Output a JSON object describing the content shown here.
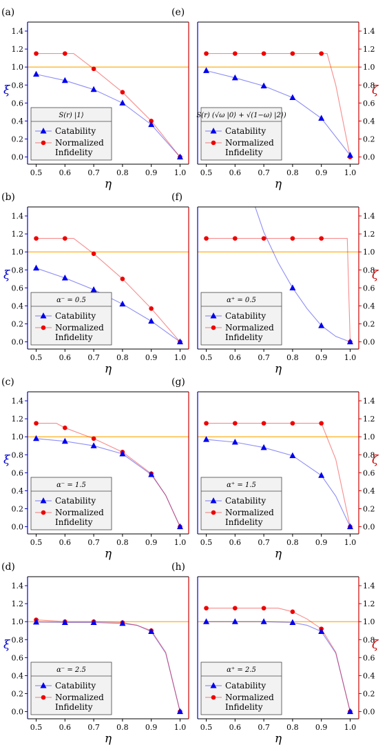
{
  "colors": {
    "catability": "#0000ee",
    "infidelity": "#ee0000",
    "reference_line": "#ffa500",
    "left_axis": "#0000cc",
    "right_axis": "#cc0000"
  },
  "legend_labels": [
    "Catability",
    "Normalized",
    "Infidelity"
  ],
  "chart_data": [
    {
      "type": "line",
      "panel": "(a)",
      "legend_title": "S(r) |1⟩",
      "xlabel": "η",
      "ylabel": "ξ",
      "ylabel_right": "",
      "x": [
        0.5,
        0.6,
        0.7,
        0.8,
        0.9,
        1.0
      ],
      "xlim": [
        0.47,
        1.03
      ],
      "ylim": [
        -0.08,
        1.5
      ],
      "x_ticks": [
        "0.5",
        "0.6",
        "0.7",
        "0.8",
        "0.9",
        "1.0"
      ],
      "y_ticks": [
        "0.0",
        "0.2",
        "0.4",
        "0.6",
        "0.8",
        "1.0",
        "1.2",
        "1.4"
      ],
      "reference_line": 1.0,
      "series": [
        {
          "name": "Catability",
          "values": [
            0.92,
            0.85,
            0.75,
            0.6,
            0.36,
            0.0
          ],
          "curve_x": [
            0.5,
            0.6,
            0.7,
            0.8,
            0.9,
            1.0
          ],
          "curve_y": [
            0.92,
            0.85,
            0.75,
            0.6,
            0.36,
            0.0
          ]
        },
        {
          "name": "Normalized Infidelity",
          "values": [
            1.15,
            1.15,
            0.98,
            0.72,
            0.4,
            0.0
          ],
          "curve_x": [
            0.5,
            0.6,
            0.63,
            0.7,
            0.8,
            0.9,
            1.0
          ],
          "curve_y": [
            1.15,
            1.15,
            1.15,
            0.98,
            0.72,
            0.4,
            0.0
          ]
        }
      ]
    },
    {
      "type": "line",
      "panel": "(b)",
      "legend_title": "α⁻ = 0.5",
      "xlabel": "η",
      "ylabel": "ξ",
      "ylabel_right": "",
      "x": [
        0.5,
        0.6,
        0.7,
        0.8,
        0.9,
        1.0
      ],
      "xlim": [
        0.47,
        1.03
      ],
      "ylim": [
        -0.08,
        1.5
      ],
      "x_ticks": [
        "0.5",
        "0.6",
        "0.7",
        "0.8",
        "0.9",
        "1.0"
      ],
      "y_ticks": [
        "0.0",
        "0.2",
        "0.4",
        "0.6",
        "0.8",
        "1.0",
        "1.2",
        "1.4"
      ],
      "reference_line": 1.0,
      "series": [
        {
          "name": "Catability",
          "values": [
            0.82,
            0.71,
            0.58,
            0.42,
            0.23,
            0.0
          ],
          "curve_x": [
            0.5,
            0.6,
            0.7,
            0.8,
            0.9,
            1.0
          ],
          "curve_y": [
            0.82,
            0.71,
            0.58,
            0.42,
            0.23,
            0.0
          ]
        },
        {
          "name": "Normalized Infidelity",
          "values": [
            1.15,
            1.15,
            0.98,
            0.7,
            0.37,
            0.0
          ],
          "curve_x": [
            0.5,
            0.6,
            0.63,
            0.7,
            0.8,
            0.9,
            1.0
          ],
          "curve_y": [
            1.15,
            1.15,
            1.15,
            0.98,
            0.7,
            0.37,
            0.0
          ]
        }
      ]
    },
    {
      "type": "line",
      "panel": "(c)",
      "legend_title": "α⁻ = 1.5",
      "xlabel": "η",
      "ylabel": "ξ",
      "ylabel_right": "",
      "x": [
        0.5,
        0.6,
        0.7,
        0.8,
        0.9,
        1.0
      ],
      "xlim": [
        0.47,
        1.03
      ],
      "ylim": [
        -0.08,
        1.5
      ],
      "x_ticks": [
        "0.5",
        "0.6",
        "0.7",
        "0.8",
        "0.9",
        "1.0"
      ],
      "y_ticks": [
        "0.0",
        "0.2",
        "0.4",
        "0.6",
        "0.8",
        "1.0",
        "1.2",
        "1.4"
      ],
      "reference_line": 1.0,
      "series": [
        {
          "name": "Catability",
          "values": [
            0.98,
            0.95,
            0.9,
            0.81,
            0.58,
            0.0
          ],
          "curve_x": [
            0.5,
            0.6,
            0.7,
            0.8,
            0.9,
            0.95,
            1.0
          ],
          "curve_y": [
            0.98,
            0.95,
            0.9,
            0.81,
            0.58,
            0.35,
            0.0
          ]
        },
        {
          "name": "Normalized Infidelity",
          "values": [
            1.15,
            1.1,
            0.98,
            0.83,
            0.59,
            0.0
          ],
          "curve_x": [
            0.5,
            0.57,
            0.6,
            0.7,
            0.8,
            0.9,
            0.95,
            1.0
          ],
          "curve_y": [
            1.15,
            1.15,
            1.1,
            0.98,
            0.83,
            0.59,
            0.35,
            0.0
          ]
        }
      ]
    },
    {
      "type": "line",
      "panel": "(d)",
      "legend_title": "α⁻ = 2.5",
      "xlabel": "η",
      "ylabel": "ξ",
      "ylabel_right": "",
      "x": [
        0.5,
        0.6,
        0.7,
        0.8,
        0.9,
        1.0
      ],
      "xlim": [
        0.47,
        1.03
      ],
      "ylim": [
        -0.08,
        1.5
      ],
      "x_ticks": [
        "0.5",
        "0.6",
        "0.7",
        "0.8",
        "0.9",
        "1.0"
      ],
      "y_ticks": [
        "0.0",
        "0.2",
        "0.4",
        "0.6",
        "0.8",
        "1.0",
        "1.2",
        "1.4"
      ],
      "reference_line": 1.0,
      "series": [
        {
          "name": "Catability",
          "values": [
            0.995,
            0.99,
            0.99,
            0.98,
            0.89,
            0.0
          ],
          "curve_x": [
            0.5,
            0.6,
            0.7,
            0.8,
            0.85,
            0.9,
            0.95,
            1.0
          ],
          "curve_y": [
            0.995,
            0.99,
            0.99,
            0.98,
            0.96,
            0.89,
            0.65,
            0.0
          ]
        },
        {
          "name": "Normalized Infidelity",
          "values": [
            1.02,
            1.0,
            1.0,
            0.99,
            0.9,
            0.0
          ],
          "curve_x": [
            0.5,
            0.6,
            0.7,
            0.8,
            0.85,
            0.9,
            0.95,
            1.0
          ],
          "curve_y": [
            1.02,
            1.0,
            1.0,
            0.99,
            0.96,
            0.9,
            0.66,
            0.0
          ]
        }
      ]
    },
    {
      "type": "line",
      "panel": "(e)",
      "legend_title": "S(r) (√ω |0⟩ + √(1−ω) |2⟩)",
      "xlabel": "η",
      "ylabel": "",
      "ylabel_right": "ζ",
      "x": [
        0.5,
        0.6,
        0.7,
        0.8,
        0.9,
        1.0
      ],
      "xlim": [
        0.47,
        1.03
      ],
      "ylim": [
        -0.08,
        1.5
      ],
      "x_ticks": [
        "0.5",
        "0.6",
        "0.7",
        "0.8",
        "0.9",
        "1.0"
      ],
      "y_ticks": [
        "0.0",
        "0.2",
        "0.4",
        "0.6",
        "0.8",
        "1.0",
        "1.2",
        "1.4"
      ],
      "reference_line": 1.0,
      "series": [
        {
          "name": "Catability",
          "values": [
            0.96,
            0.88,
            0.79,
            0.66,
            0.43,
            0.02
          ],
          "curve_x": [
            0.5,
            0.6,
            0.7,
            0.8,
            0.9,
            1.0
          ],
          "curve_y": [
            0.96,
            0.88,
            0.79,
            0.66,
            0.43,
            0.02
          ]
        },
        {
          "name": "Normalized Infidelity",
          "values": [
            1.15,
            1.15,
            1.15,
            1.15,
            1.15,
            0.0
          ],
          "curve_x": [
            0.5,
            0.6,
            0.7,
            0.8,
            0.9,
            0.92,
            0.95,
            1.0
          ],
          "curve_y": [
            1.15,
            1.15,
            1.15,
            1.15,
            1.15,
            1.15,
            0.8,
            0.0
          ]
        }
      ]
    },
    {
      "type": "line",
      "panel": "(f)",
      "legend_title": "α⁺ = 0.5",
      "xlabel": "η",
      "ylabel": "",
      "ylabel_right": "ζ",
      "x": [
        0.5,
        0.6,
        0.7,
        0.8,
        0.9,
        1.0
      ],
      "xlim": [
        0.47,
        1.03
      ],
      "ylim": [
        -0.08,
        1.5
      ],
      "x_ticks": [
        "0.5",
        "0.6",
        "0.7",
        "0.8",
        "0.9",
        "1.0"
      ],
      "y_ticks": [
        "0.0",
        "0.2",
        "0.4",
        "0.6",
        "0.8",
        "1.0",
        "1.2",
        "1.4"
      ],
      "reference_line": 1.0,
      "series": [
        {
          "name": "Catability",
          "values": [
            null,
            null,
            null,
            0.6,
            0.18,
            0.0
          ],
          "curve_x": [
            0.67,
            0.7,
            0.75,
            0.8,
            0.85,
            0.9,
            0.95,
            1.0
          ],
          "curve_y": [
            1.5,
            1.22,
            0.88,
            0.6,
            0.37,
            0.18,
            0.06,
            0.0
          ]
        },
        {
          "name": "Normalized Infidelity",
          "values": [
            1.15,
            1.15,
            1.15,
            1.15,
            1.15,
            0.0
          ],
          "curve_x": [
            0.5,
            0.6,
            0.7,
            0.8,
            0.9,
            0.99,
            1.0
          ],
          "curve_y": [
            1.15,
            1.15,
            1.15,
            1.15,
            1.15,
            1.15,
            0.0
          ]
        }
      ]
    },
    {
      "type": "line",
      "panel": "(g)",
      "legend_title": "α⁺ = 1.5",
      "xlabel": "η",
      "ylabel": "",
      "ylabel_right": "ζ",
      "x": [
        0.5,
        0.6,
        0.7,
        0.8,
        0.9,
        1.0
      ],
      "xlim": [
        0.47,
        1.03
      ],
      "ylim": [
        -0.08,
        1.5
      ],
      "x_ticks": [
        "0.5",
        "0.6",
        "0.7",
        "0.8",
        "0.9",
        "1.0"
      ],
      "y_ticks": [
        "0.0",
        "0.2",
        "0.4",
        "0.6",
        "0.8",
        "1.0",
        "1.2",
        "1.4"
      ],
      "reference_line": 1.0,
      "series": [
        {
          "name": "Catability",
          "values": [
            0.97,
            0.94,
            0.88,
            0.79,
            0.57,
            0.0
          ],
          "curve_x": [
            0.5,
            0.6,
            0.7,
            0.8,
            0.9,
            0.95,
            1.0
          ],
          "curve_y": [
            0.97,
            0.94,
            0.88,
            0.79,
            0.57,
            0.34,
            0.0
          ]
        },
        {
          "name": "Normalized Infidelity",
          "values": [
            1.15,
            1.15,
            1.15,
            1.15,
            1.15,
            0.0
          ],
          "curve_x": [
            0.5,
            0.6,
            0.7,
            0.8,
            0.9,
            0.95,
            1.0
          ],
          "curve_y": [
            1.15,
            1.15,
            1.15,
            1.15,
            1.15,
            0.75,
            0.0
          ]
        }
      ]
    },
    {
      "type": "line",
      "panel": "(h)",
      "legend_title": "α⁺ = 2.5",
      "xlabel": "η",
      "ylabel": "",
      "ylabel_right": "ζ",
      "x": [
        0.5,
        0.6,
        0.7,
        0.8,
        0.9,
        1.0
      ],
      "xlim": [
        0.47,
        1.03
      ],
      "ylim": [
        -0.08,
        1.5
      ],
      "x_ticks": [
        "0.5",
        "0.6",
        "0.7",
        "0.8",
        "0.9",
        "1.0"
      ],
      "y_ticks": [
        "0.0",
        "0.2",
        "0.4",
        "0.6",
        "0.8",
        "1.0",
        "1.2",
        "1.4"
      ],
      "reference_line": 1.0,
      "series": [
        {
          "name": "Catability",
          "values": [
            1.0,
            1.0,
            1.0,
            0.99,
            0.89,
            0.0
          ],
          "curve_x": [
            0.5,
            0.6,
            0.7,
            0.8,
            0.85,
            0.9,
            0.95,
            1.0
          ],
          "curve_y": [
            1.0,
            1.0,
            1.0,
            0.99,
            0.96,
            0.89,
            0.65,
            0.0
          ]
        },
        {
          "name": "Normalized Infidelity",
          "values": [
            1.15,
            1.15,
            1.15,
            1.11,
            0.92,
            0.0
          ],
          "curve_x": [
            0.5,
            0.6,
            0.7,
            0.75,
            0.8,
            0.85,
            0.9,
            0.95,
            1.0
          ],
          "curve_y": [
            1.15,
            1.15,
            1.15,
            1.15,
            1.11,
            1.03,
            0.92,
            0.66,
            0.0
          ]
        }
      ]
    }
  ]
}
